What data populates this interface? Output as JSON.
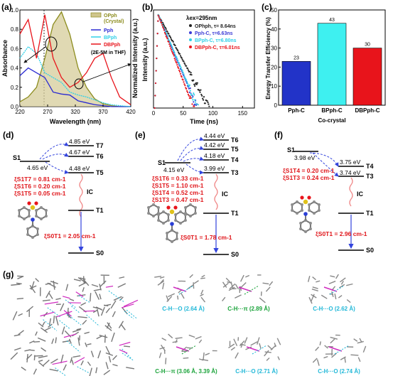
{
  "panel_labels": [
    "(a)",
    "(b)",
    "(c)",
    "(d)",
    "(e)",
    "(f)",
    "(g)"
  ],
  "panel_a": {
    "ylabel": "Absorbance",
    "ylabel_right": "Normalized Intensity (a.u.)",
    "xlabel": "Wavelength (nm)",
    "xticks": [
      "220",
      "270",
      "320",
      "370",
      "420"
    ],
    "yticks": [
      "0.0",
      "0.2",
      "0.4",
      "0.6",
      "0.8",
      "1.0"
    ],
    "legend": [
      "OPph",
      "(Crystal)",
      "Pph",
      "BPph",
      "DBPph",
      "(2E-5M in THF)"
    ]
  },
  "panel_b": {
    "ylabel": "Intensity (a.u.)",
    "xlabel": "Time (ns)",
    "xticks": [
      "0",
      "50",
      "100",
      "150"
    ],
    "annotation": "λex=295nm",
    "legend": [
      "OPhph, τ= 8.64ns",
      "Pph-C, τ=6.63ns",
      "BPph-C, τ=6.80ns",
      "DBPph-C, τ=6.01ns"
    ]
  },
  "panel_c": {
    "ylabel": "Energy Transfer Efficiency (%)",
    "xlabel": "Co-crystal",
    "yticks": [
      "0",
      "10",
      "20",
      "30",
      "40",
      "50"
    ]
  },
  "chart_data": [
    {
      "type": "line",
      "xlabel": "Wavelength (nm)",
      "ylabel": "Absorbance",
      "xlim": [
        220,
        420
      ],
      "ylim": [
        0,
        1.0
      ],
      "x": [
        220,
        235,
        250,
        265,
        280,
        295,
        310,
        325,
        340,
        355,
        370,
        385,
        400,
        420
      ],
      "series": [
        {
          "name": "OPph (Crystal)",
          "values": [
            0.05,
            0.1,
            0.2,
            0.5,
            0.85,
            0.98,
            0.75,
            0.4,
            0.2,
            0.08,
            0.03,
            0.01,
            0.0,
            0.0
          ]
        },
        {
          "name": "Pph",
          "values": [
            0.32,
            0.4,
            0.35,
            0.3,
            0.15,
            0.13,
            0.12,
            0.06,
            0.04,
            0.02,
            0.01,
            0.0,
            0.0,
            0.0
          ]
        },
        {
          "name": "BPph",
          "values": [
            0.5,
            0.62,
            0.55,
            0.35,
            0.3,
            0.25,
            0.15,
            0.12,
            0.1,
            0.07,
            0.04,
            0.02,
            0.01,
            0.0
          ]
        },
        {
          "name": "DBPph",
          "values": [
            0.75,
            0.9,
            0.5,
            0.95,
            0.5,
            0.3,
            0.2,
            0.25,
            0.35,
            0.5,
            0.55,
            0.3,
            0.1,
            0.02
          ]
        }
      ]
    },
    {
      "type": "scatter",
      "xlabel": "Time (ns)",
      "ylabel": "Intensity (a.u.)",
      "xlim": [
        0,
        170
      ],
      "yscale": "log",
      "series": [
        {
          "name": "OPhph, τ= 8.64ns",
          "tau_ns": 8.64,
          "color": "#222222"
        },
        {
          "name": "Pph-C, τ=6.63ns",
          "tau_ns": 6.63,
          "color": "#3b3bd6"
        },
        {
          "name": "BPph-C, τ=6.80ns",
          "tau_ns": 6.8,
          "color": "#2fd0e8"
        },
        {
          "name": "DBPph-C, τ=6.01ns",
          "tau_ns": 6.01,
          "color": "#e8141b"
        }
      ]
    },
    {
      "type": "bar",
      "xlabel": "Co-crystal",
      "ylabel": "Energy Transfer Efficiency (%)",
      "ylim": [
        0,
        50
      ],
      "categories": [
        "Pph-C",
        "BPph-C",
        "DBPph-C"
      ],
      "values": [
        23,
        43,
        30
      ],
      "value_labels": [
        "23",
        "43",
        "30"
      ],
      "colors": [
        "#2233c8",
        "#3ef0f0",
        "#e8141b"
      ]
    }
  ],
  "panel_d": {
    "s1": "S1",
    "s1_energy": "4.65 eV",
    "levels": [
      {
        "energy": "4.85 eV",
        "state": "T7"
      },
      {
        "energy": "4.67 eV",
        "state": "T6"
      },
      {
        "energy": "4.48 eV",
        "state": "T5"
      },
      {
        "energy": "",
        "state": "T1"
      },
      {
        "energy": "",
        "state": "S0"
      }
    ],
    "socs": [
      "ξS1T7 = 0.81 cm-1",
      "ξS1T6 = 0.20 cm-1",
      "ξS1T5 = 0.05 cm-1"
    ],
    "ic": "IC",
    "soc_t1s0": "ξS0T1 = 2.05 cm-1"
  },
  "panel_e": {
    "s1": "S1",
    "s1_energy": "4.15 eV",
    "levels": [
      {
        "energy": "4.44 eV",
        "state": "T6"
      },
      {
        "energy": "4.42 eV",
        "state": "T5"
      },
      {
        "energy": "4.18 eV",
        "state": "T4"
      },
      {
        "energy": "3.99 eV",
        "state": "T3"
      },
      {
        "energy": "",
        "state": "T1"
      },
      {
        "energy": "",
        "state": "S0"
      }
    ],
    "socs": [
      "ξS1T6 = 0.33 cm-1",
      "ξS1T5 = 1.10 cm-1",
      "ξS1T4 = 0.52 cm-1",
      "ξS1T3 = 0.47 cm-1"
    ],
    "ic": "IC",
    "soc_t1s0": "ξS0T1 = 1.78 cm-1"
  },
  "panel_f": {
    "s1": "S1",
    "s1_energy": "3.98 eV",
    "levels": [
      {
        "energy": "3.75 eV",
        "state": "T4"
      },
      {
        "energy": "3.74 eV",
        "state": "T3"
      },
      {
        "energy": "",
        "state": "T1"
      },
      {
        "energy": "",
        "state": "S0"
      }
    ],
    "socs": [
      "ξS1T4 = 0.20 cm-1",
      "ξS1T3 = 0.24 cm-1"
    ],
    "ic": "IC",
    "soc_t1s0": "ξS0T1 = 2.96 cm-1"
  },
  "panel_g": {
    "captions": [
      "C-H···O (2.64 Å)",
      "C-H···π (2.89 Å)",
      "C-H···O (2.62 Å)",
      "C-H···π (3.06 Å, 3.39 Å)",
      "C-H···O (2.71 Å)",
      "C-H···O (2.74 Å)"
    ],
    "caption_colors": [
      "#22b8d8",
      "#1aa33a",
      "#22b8d8",
      "#1aa33a",
      "#22b8d8",
      "#22b8d8"
    ]
  },
  "colors": {
    "opph": "#8c8c1e",
    "pph": "#2a2ad2",
    "bpph": "#2fd0e8",
    "dbpph": "#e8141b",
    "arrow": "#3344dd",
    "soc": "#e0151a",
    "ic": "#f08a8a"
  }
}
